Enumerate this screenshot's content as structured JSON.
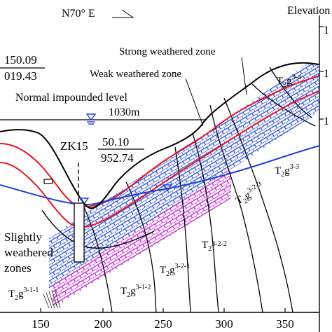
{
  "header": {
    "direction_label": "N70° E",
    "axis_title": "Elevation"
  },
  "y_tick_labels": [
    "1",
    "1",
    "1"
  ],
  "x_axis": {
    "ticks": [
      "150",
      "200",
      "250",
      "300",
      "350"
    ]
  },
  "borehole_left": {
    "top": "150.09",
    "bottom": "019.43"
  },
  "borehole_zk15": {
    "name": "ZK15",
    "top": "50.10",
    "bottom": "952.74"
  },
  "zones": {
    "strong": "Strong weathered zone",
    "weak": "Weak weathered zone",
    "slight_line1": "Slightly",
    "slight_line2": "weathered",
    "slight_line3": "zones"
  },
  "water_level": {
    "name": "Normal impounded level",
    "value": "1030m"
  },
  "strata": [
    {
      "base": "T",
      "sub": "2",
      "letter": "g",
      "sup": "3-4"
    },
    {
      "base": "T",
      "sub": "2",
      "letter": "g",
      "sup": "3-3"
    },
    {
      "base": "T",
      "sub": "2",
      "letter": "g",
      "sup": "3-2-3"
    },
    {
      "base": "T",
      "sub": "2",
      "letter": "",
      "sup": "3-2-2"
    },
    {
      "base": "T",
      "sub": "2",
      "letter": "g",
      "sup": "3-2-1"
    },
    {
      "base": "T",
      "sub": "2",
      "letter": "g",
      "sup": "3-1-2"
    },
    {
      "base": "T",
      "sub": "2",
      "letter": "g",
      "sup": "3-1-1"
    }
  ],
  "colors": {
    "ground": "#000000",
    "strong_boundary": "#e8141e",
    "groundwater": "#1f3fd6",
    "band_blue": "#2a4fe0",
    "band_magenta": "#c81ad8"
  }
}
